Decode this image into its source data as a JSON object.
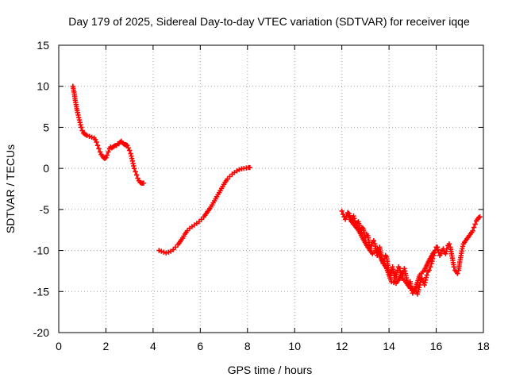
{
  "chart_data": {
    "type": "scatter",
    "title": "Day 179 of 2025, Sidereal Day-to-day VTEC variation (SDTVAR) for receiver iqqe",
    "xlabel": "GPS time / hours",
    "ylabel": "SDTVAR / TECUs",
    "xlim": [
      0,
      18
    ],
    "ylim": [
      -20,
      15
    ],
    "xticks": [
      0,
      2,
      4,
      6,
      8,
      10,
      12,
      14,
      16,
      18
    ],
    "yticks": [
      -20,
      -15,
      -10,
      -5,
      0,
      5,
      10,
      15
    ],
    "grid": true,
    "marker": "plus",
    "series": [
      {
        "name": "segment-1",
        "color": "#ff0000",
        "x": [
          0.6,
          0.65,
          0.7,
          0.75,
          0.8,
          0.85,
          0.9,
          0.95,
          1.0,
          1.05,
          1.1,
          1.15,
          1.2,
          1.3,
          1.4,
          1.5,
          1.55,
          1.6,
          1.65,
          1.7,
          1.75,
          1.8,
          1.85,
          1.9,
          1.95,
          2.0,
          2.05,
          2.1,
          2.15,
          2.2,
          2.25,
          2.3,
          2.35,
          2.4,
          2.45,
          2.5,
          2.55,
          2.6,
          2.65,
          2.7,
          2.75,
          2.8,
          2.85,
          2.9,
          2.95,
          3.0,
          3.05,
          3.1,
          3.15,
          3.2,
          3.25,
          3.3,
          3.35,
          3.4,
          3.45,
          3.5,
          3.55,
          3.6
        ],
        "y": [
          10.0,
          9.3,
          8.3,
          7.5,
          6.8,
          6.2,
          5.6,
          5.0,
          4.6,
          4.3,
          4.2,
          4.1,
          4.0,
          3.9,
          3.8,
          3.7,
          3.5,
          3.2,
          2.8,
          2.4,
          2.0,
          1.7,
          1.5,
          1.3,
          1.2,
          1.3,
          1.6,
          2.0,
          2.4,
          2.6,
          2.5,
          2.6,
          2.7,
          2.8,
          2.8,
          3.0,
          3.0,
          3.2,
          3.3,
          3.1,
          3.0,
          2.9,
          2.9,
          2.8,
          2.5,
          2.2,
          1.8,
          1.2,
          0.6,
          0.0,
          -0.4,
          -0.8,
          -1.2,
          -1.5,
          -1.7,
          -1.8,
          -1.8,
          -1.8
        ]
      },
      {
        "name": "segment-2",
        "color": "#ff0000",
        "x": [
          4.25,
          4.35,
          4.45,
          4.55,
          4.65,
          4.75,
          4.85,
          4.95,
          5.05,
          5.15,
          5.25,
          5.35,
          5.45,
          5.55,
          5.65,
          5.75,
          5.85,
          5.95,
          6.05,
          6.15,
          6.25,
          6.35,
          6.45,
          6.55,
          6.65,
          6.75,
          6.85,
          6.95,
          7.05,
          7.15,
          7.25,
          7.35,
          7.45,
          7.55,
          7.65,
          7.75,
          7.85,
          7.95,
          8.05,
          8.1
        ],
        "y": [
          -10.0,
          -10.1,
          -10.2,
          -10.3,
          -10.2,
          -10.1,
          -9.9,
          -9.6,
          -9.3,
          -8.9,
          -8.5,
          -8.0,
          -7.6,
          -7.3,
          -7.1,
          -6.9,
          -6.7,
          -6.5,
          -6.2,
          -5.9,
          -5.5,
          -5.1,
          -4.7,
          -4.2,
          -3.7,
          -3.2,
          -2.7,
          -2.2,
          -1.7,
          -1.3,
          -1.0,
          -0.7,
          -0.5,
          -0.3,
          -0.15,
          -0.05,
          0.0,
          0.05,
          0.1,
          0.1
        ]
      },
      {
        "name": "segment-3",
        "color": "#ff0000",
        "x": [
          12.0,
          12.05,
          12.1,
          12.15,
          12.2,
          12.25,
          12.3,
          12.35,
          12.4,
          12.45,
          12.5,
          12.55,
          12.6,
          12.65,
          12.7,
          12.75,
          12.8,
          12.85,
          12.9,
          12.95,
          13.0,
          13.05,
          13.1,
          13.15,
          13.2,
          13.25,
          13.3,
          13.35,
          13.4,
          13.45,
          13.5,
          13.55,
          13.6,
          13.65,
          13.7,
          13.75,
          13.8,
          13.85,
          13.9,
          13.95,
          14.0,
          14.05,
          14.1,
          14.15,
          14.2,
          14.25,
          14.3,
          14.35,
          14.4,
          14.45,
          14.5,
          14.55,
          14.6,
          14.65,
          14.7,
          14.75,
          14.8,
          14.85,
          14.9,
          14.95,
          15.0,
          15.05,
          15.1,
          15.15,
          15.2,
          15.25,
          15.3,
          15.35,
          15.4,
          15.45,
          15.5,
          15.55,
          15.6,
          15.65,
          15.7,
          15.75,
          15.8,
          15.85,
          15.9,
          15.95,
          16.0,
          16.05,
          16.1,
          16.15,
          16.2,
          16.25,
          16.3,
          16.35,
          16.4,
          16.45,
          16.5,
          16.55,
          16.6,
          16.65,
          16.7,
          16.75,
          16.8,
          16.85,
          16.9,
          16.95,
          17.0,
          17.05,
          17.1,
          17.15,
          17.2,
          17.25,
          17.3,
          17.35,
          17.4,
          17.45,
          17.5,
          17.55,
          17.6,
          17.65,
          17.7,
          17.75,
          17.8,
          17.85
        ],
        "y": [
          -5.2,
          -5.6,
          -5.9,
          -6.2,
          -5.8,
          -5.4,
          -5.5,
          -6.0,
          -6.5,
          -6.0,
          -5.8,
          -6.4,
          -7.0,
          -6.6,
          -6.5,
          -7.2,
          -7.8,
          -7.2,
          -7.3,
          -8.0,
          -8.4,
          -8.0,
          -8.2,
          -9.0,
          -9.8,
          -9.4,
          -9.0,
          -8.8,
          -9.2,
          -10.0,
          -10.6,
          -10.0,
          -9.6,
          -10.3,
          -11.0,
          -11.6,
          -11.0,
          -10.6,
          -10.8,
          -11.8,
          -12.6,
          -13.0,
          -12.4,
          -12.0,
          -12.8,
          -13.6,
          -13.2,
          -12.4,
          -12.0,
          -12.2,
          -13.0,
          -13.4,
          -12.6,
          -12.2,
          -12.8,
          -13.6,
          -14.2,
          -14.0,
          -13.8,
          -14.6,
          -15.2,
          -15.0,
          -14.6,
          -15.0,
          -15.3,
          -14.8,
          -14.2,
          -13.6,
          -13.4,
          -13.8,
          -14.2,
          -13.6,
          -13.0,
          -12.6,
          -12.4,
          -12.0,
          -11.6,
          -11.0,
          -10.6,
          -10.0,
          -9.6,
          -9.6,
          -10.2,
          -10.6,
          -10.4,
          -10.0,
          -9.8,
          -10.2,
          -10.4,
          -9.8,
          -9.4,
          -9.2,
          -9.6,
          -10.4,
          -11.2,
          -12.0,
          -12.4,
          -12.6,
          -12.8,
          -12.4,
          -11.4,
          -10.6,
          -9.8,
          -9.2,
          -9.0,
          -8.8,
          -8.6,
          -8.4,
          -8.2,
          -8.0,
          -7.8,
          -7.6,
          -7.2,
          -6.8,
          -6.4,
          -6.2,
          -6.0,
          -5.9
        ]
      },
      {
        "name": "segment-3b",
        "color": "#ff0000",
        "x": [
          12.3,
          12.5,
          12.7,
          12.9,
          13.1,
          13.3,
          13.5,
          13.7,
          13.9,
          14.1,
          14.3,
          14.5,
          14.7,
          14.9,
          15.1,
          15.3,
          15.5,
          15.7,
          15.9
        ],
        "y": [
          -5.8,
          -6.8,
          -7.5,
          -8.6,
          -9.6,
          -10.4,
          -9.8,
          -11.2,
          -12.2,
          -13.8,
          -14.0,
          -13.2,
          -13.8,
          -14.6,
          -14.8,
          -13.0,
          -12.4,
          -11.2,
          -10.2
        ]
      }
    ]
  }
}
